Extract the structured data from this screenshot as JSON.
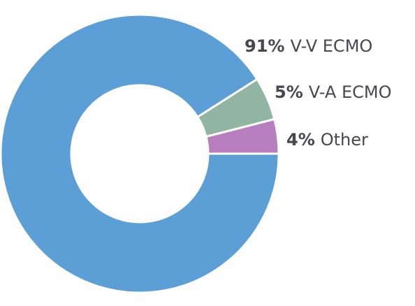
{
  "chart_data": {
    "type": "donut",
    "categories": [
      "V-V ECMO",
      "V-A ECMO",
      "Other"
    ],
    "values": [
      91,
      5,
      4
    ],
    "value_labels": [
      "91%",
      "5%",
      "4%"
    ],
    "colors": [
      "#5b9fd6",
      "#92b5a3",
      "#b87fbe"
    ]
  }
}
